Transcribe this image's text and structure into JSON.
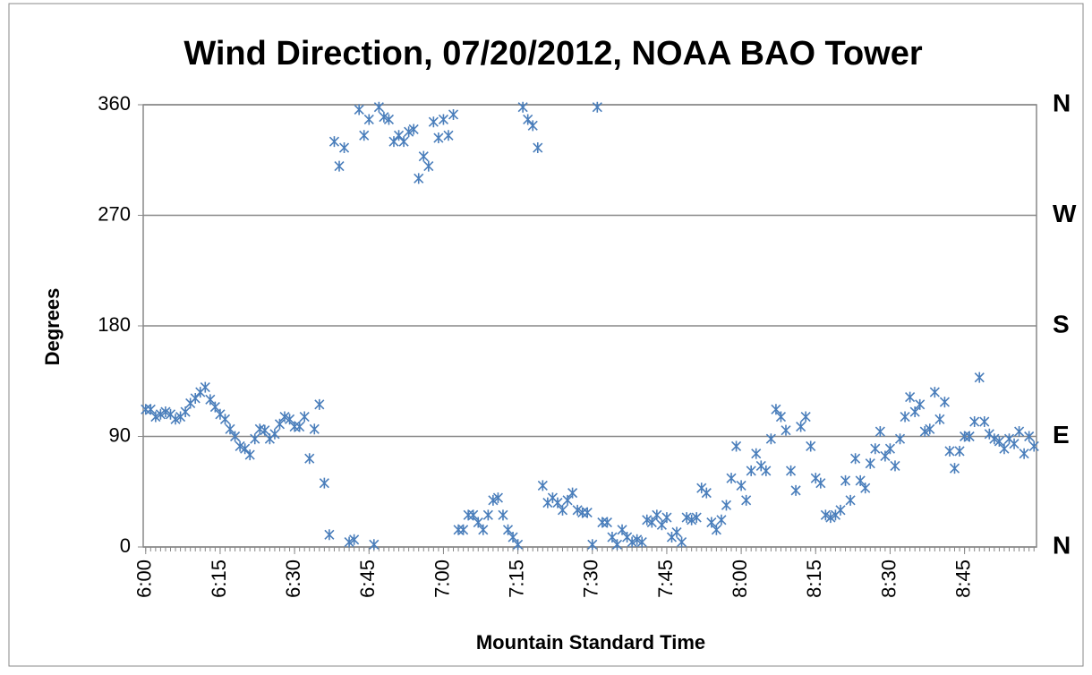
{
  "chart_data": {
    "type": "scatter",
    "title": "Wind Direction, 07/20/2012, NOAA BAO Tower",
    "x_label": "Mountain Standard Time",
    "y_label": "Degrees",
    "series": [
      {
        "name": "Wind Direction",
        "color": "#4a7ebb",
        "x": [
          0,
          1,
          2,
          3,
          4,
          5,
          6,
          7,
          8,
          9,
          10,
          11,
          12,
          13,
          14,
          15,
          16,
          17,
          18,
          19,
          20,
          21,
          22,
          23,
          24,
          25,
          26,
          27,
          28,
          29,
          30,
          31,
          32,
          33,
          34,
          35,
          36,
          37,
          38,
          39,
          40,
          41,
          42,
          43,
          44,
          45,
          46,
          47,
          48,
          49,
          50,
          51,
          52,
          53,
          54,
          55,
          56,
          57,
          58,
          59,
          60,
          61,
          62,
          63,
          64,
          65,
          66,
          67,
          68,
          69,
          70,
          71,
          72,
          73,
          74,
          75,
          76,
          77,
          78,
          79,
          80,
          81,
          82,
          83,
          84,
          85,
          86,
          87,
          88,
          89,
          90,
          91,
          92,
          93,
          94,
          95,
          96,
          97,
          98,
          99,
          100,
          101,
          102,
          103,
          104,
          105,
          106,
          107,
          108,
          109,
          110,
          111,
          112,
          113,
          114,
          115,
          116,
          117,
          118,
          119,
          120,
          121,
          122,
          123,
          124,
          125,
          126,
          127,
          128,
          129,
          130,
          131,
          132,
          133,
          134,
          135,
          136,
          137,
          138,
          139,
          140,
          141,
          142,
          143,
          144,
          145,
          146,
          147,
          148,
          149,
          150,
          151,
          152,
          153,
          154,
          155,
          156,
          157,
          158,
          159,
          160,
          161,
          162,
          163,
          164,
          165,
          166,
          167,
          168,
          169,
          170,
          171,
          172,
          173,
          174,
          175,
          176,
          177,
          178,
          179
        ],
        "values": [
          112,
          112,
          106,
          108,
          110,
          108,
          104,
          106,
          110,
          117,
          121,
          126,
          130,
          120,
          114,
          108,
          104,
          96,
          90,
          82,
          80,
          75,
          88,
          96,
          95,
          88,
          92,
          100,
          106,
          104,
          98,
          98,
          106,
          72,
          96,
          116,
          52,
          10,
          330,
          310,
          325,
          4,
          6,
          356,
          335,
          348,
          2,
          358,
          350,
          348,
          330,
          335,
          330,
          338,
          340,
          300,
          318,
          310,
          346,
          333,
          348,
          335,
          352,
          14,
          14,
          26,
          26,
          20,
          14,
          26,
          38,
          40,
          26,
          14,
          8,
          2,
          358,
          348,
          343,
          325,
          50,
          36,
          40,
          36,
          30,
          38,
          44,
          30,
          28,
          28,
          2,
          358,
          20,
          20,
          8,
          2,
          14,
          8,
          4,
          6,
          4,
          22,
          20,
          26,
          18,
          24,
          8,
          12,
          4,
          24,
          22,
          24,
          48,
          44,
          20,
          14,
          22,
          34,
          56,
          82,
          50,
          38,
          62,
          76,
          66,
          62,
          88,
          112,
          106,
          95,
          62,
          46,
          98,
          106,
          82,
          56,
          52,
          26,
          24,
          26,
          30,
          54,
          38,
          72,
          54,
          48,
          68,
          80,
          94,
          74,
          80,
          66,
          88,
          106,
          122,
          110,
          116,
          94,
          96,
          126,
          104,
          118,
          78,
          64,
          78,
          90,
          90,
          102,
          138,
          102,
          92,
          88,
          86,
          80,
          88,
          84,
          94,
          76,
          90,
          82
        ]
      }
    ],
    "xlim": [
      -0.5,
      179.5
    ],
    "xticks": [
      {
        "value": 0,
        "label": "6:00"
      },
      {
        "value": 15,
        "label": "6:15"
      },
      {
        "value": 30,
        "label": "6:30"
      },
      {
        "value": 45,
        "label": "6:45"
      },
      {
        "value": 60,
        "label": "7:00"
      },
      {
        "value": 75,
        "label": "7:15"
      },
      {
        "value": 90,
        "label": "7:30"
      },
      {
        "value": 105,
        "label": "7:45"
      },
      {
        "value": 120,
        "label": "8:00"
      },
      {
        "value": 135,
        "label": "8:15"
      },
      {
        "value": 150,
        "label": "8:30"
      },
      {
        "value": 165,
        "label": "8:45"
      }
    ],
    "ylim": [
      0,
      360
    ],
    "yticks": [
      0,
      90,
      180,
      270,
      360
    ],
    "y2lim": [
      0,
      360
    ],
    "y2ticks": [
      {
        "value": 0,
        "label": "N"
      },
      {
        "value": 90,
        "label": "E"
      },
      {
        "value": 180,
        "label": "S"
      },
      {
        "value": 270,
        "label": "W"
      },
      {
        "value": 360,
        "label": "N"
      }
    ],
    "grid": true
  }
}
